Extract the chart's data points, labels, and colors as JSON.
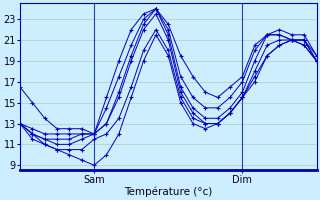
{
  "background_color": "#cceeff",
  "grid_color": "#aacccc",
  "line_color": "#0000bb",
  "marker": "+",
  "xlabel": "Température (°c)",
  "yticks": [
    9,
    11,
    13,
    15,
    17,
    19,
    21,
    23
  ],
  "ylim": [
    8.5,
    24.5
  ],
  "xlim": [
    0,
    96
  ],
  "sam_x": 24,
  "dim_x": 72,
  "series": [
    {
      "x": [
        0,
        4,
        8,
        12,
        16,
        20,
        24,
        28,
        32,
        36,
        40,
        44,
        48,
        52,
        56,
        60,
        64,
        68,
        72,
        76,
        80,
        84,
        88,
        92,
        96
      ],
      "y": [
        16.5,
        15.0,
        13.5,
        12.5,
        12.5,
        12.5,
        12.0,
        15.5,
        19.0,
        22.0,
        23.5,
        24.0,
        22.5,
        19.5,
        17.5,
        16.0,
        15.5,
        16.5,
        17.5,
        20.5,
        21.5,
        21.5,
        21.0,
        21.0,
        19.0
      ]
    },
    {
      "x": [
        0,
        4,
        8,
        12,
        16,
        20,
        24,
        28,
        32,
        36,
        40,
        44,
        48,
        52,
        56,
        60,
        64,
        68,
        72,
        76,
        80,
        84,
        88,
        92,
        96
      ],
      "y": [
        13.0,
        12.5,
        12.0,
        12.0,
        12.0,
        12.0,
        12.0,
        14.5,
        17.5,
        20.5,
        23.0,
        24.0,
        22.0,
        17.5,
        15.5,
        14.5,
        14.5,
        15.5,
        17.0,
        20.0,
        21.5,
        21.5,
        21.0,
        21.0,
        19.5
      ]
    },
    {
      "x": [
        0,
        4,
        8,
        12,
        16,
        20,
        24,
        28,
        32,
        36,
        40,
        44,
        48,
        52,
        56,
        60,
        64,
        68,
        72,
        76,
        80,
        84,
        88,
        92,
        96
      ],
      "y": [
        13.0,
        12.0,
        11.5,
        11.5,
        11.5,
        12.0,
        12.0,
        13.0,
        16.0,
        19.5,
        22.5,
        24.0,
        21.5,
        16.5,
        14.5,
        13.5,
        13.5,
        14.5,
        16.0,
        19.0,
        21.5,
        22.0,
        21.5,
        21.5,
        19.5
      ]
    },
    {
      "x": [
        0,
        4,
        8,
        12,
        16,
        20,
        24,
        28,
        32,
        36,
        40,
        44,
        48,
        52,
        56,
        60,
        64,
        68,
        72,
        76,
        80,
        84,
        88,
        92,
        96
      ],
      "y": [
        13.0,
        12.0,
        11.5,
        11.0,
        11.0,
        11.5,
        12.0,
        13.0,
        15.5,
        19.0,
        22.0,
        23.5,
        21.0,
        16.0,
        14.0,
        13.0,
        13.0,
        14.0,
        15.5,
        18.0,
        20.5,
        21.0,
        21.0,
        21.0,
        19.0
      ]
    },
    {
      "x": [
        0,
        4,
        8,
        12,
        16,
        20,
        24,
        28,
        32,
        36,
        40,
        44,
        48,
        52,
        56,
        60,
        64,
        68,
        72,
        76,
        80,
        84,
        88,
        92,
        96
      ],
      "y": [
        13.0,
        12.0,
        11.0,
        10.5,
        10.5,
        10.5,
        11.5,
        12.0,
        13.5,
        16.5,
        20.0,
        22.0,
        20.0,
        15.5,
        13.5,
        13.0,
        13.0,
        14.0,
        15.5,
        17.5,
        19.5,
        20.5,
        21.0,
        20.5,
        19.0
      ]
    },
    {
      "x": [
        0,
        4,
        8,
        12,
        16,
        20,
        24,
        28,
        32,
        36,
        40,
        44,
        48,
        52,
        56,
        60,
        64,
        68,
        72,
        76,
        80,
        84,
        88,
        92,
        96
      ],
      "y": [
        13.0,
        11.5,
        11.0,
        10.5,
        10.0,
        9.5,
        9.0,
        10.0,
        12.0,
        15.5,
        19.0,
        21.5,
        19.5,
        15.0,
        13.0,
        12.5,
        13.0,
        14.0,
        15.5,
        17.0,
        19.5,
        20.5,
        21.0,
        20.5,
        19.0
      ]
    }
  ]
}
